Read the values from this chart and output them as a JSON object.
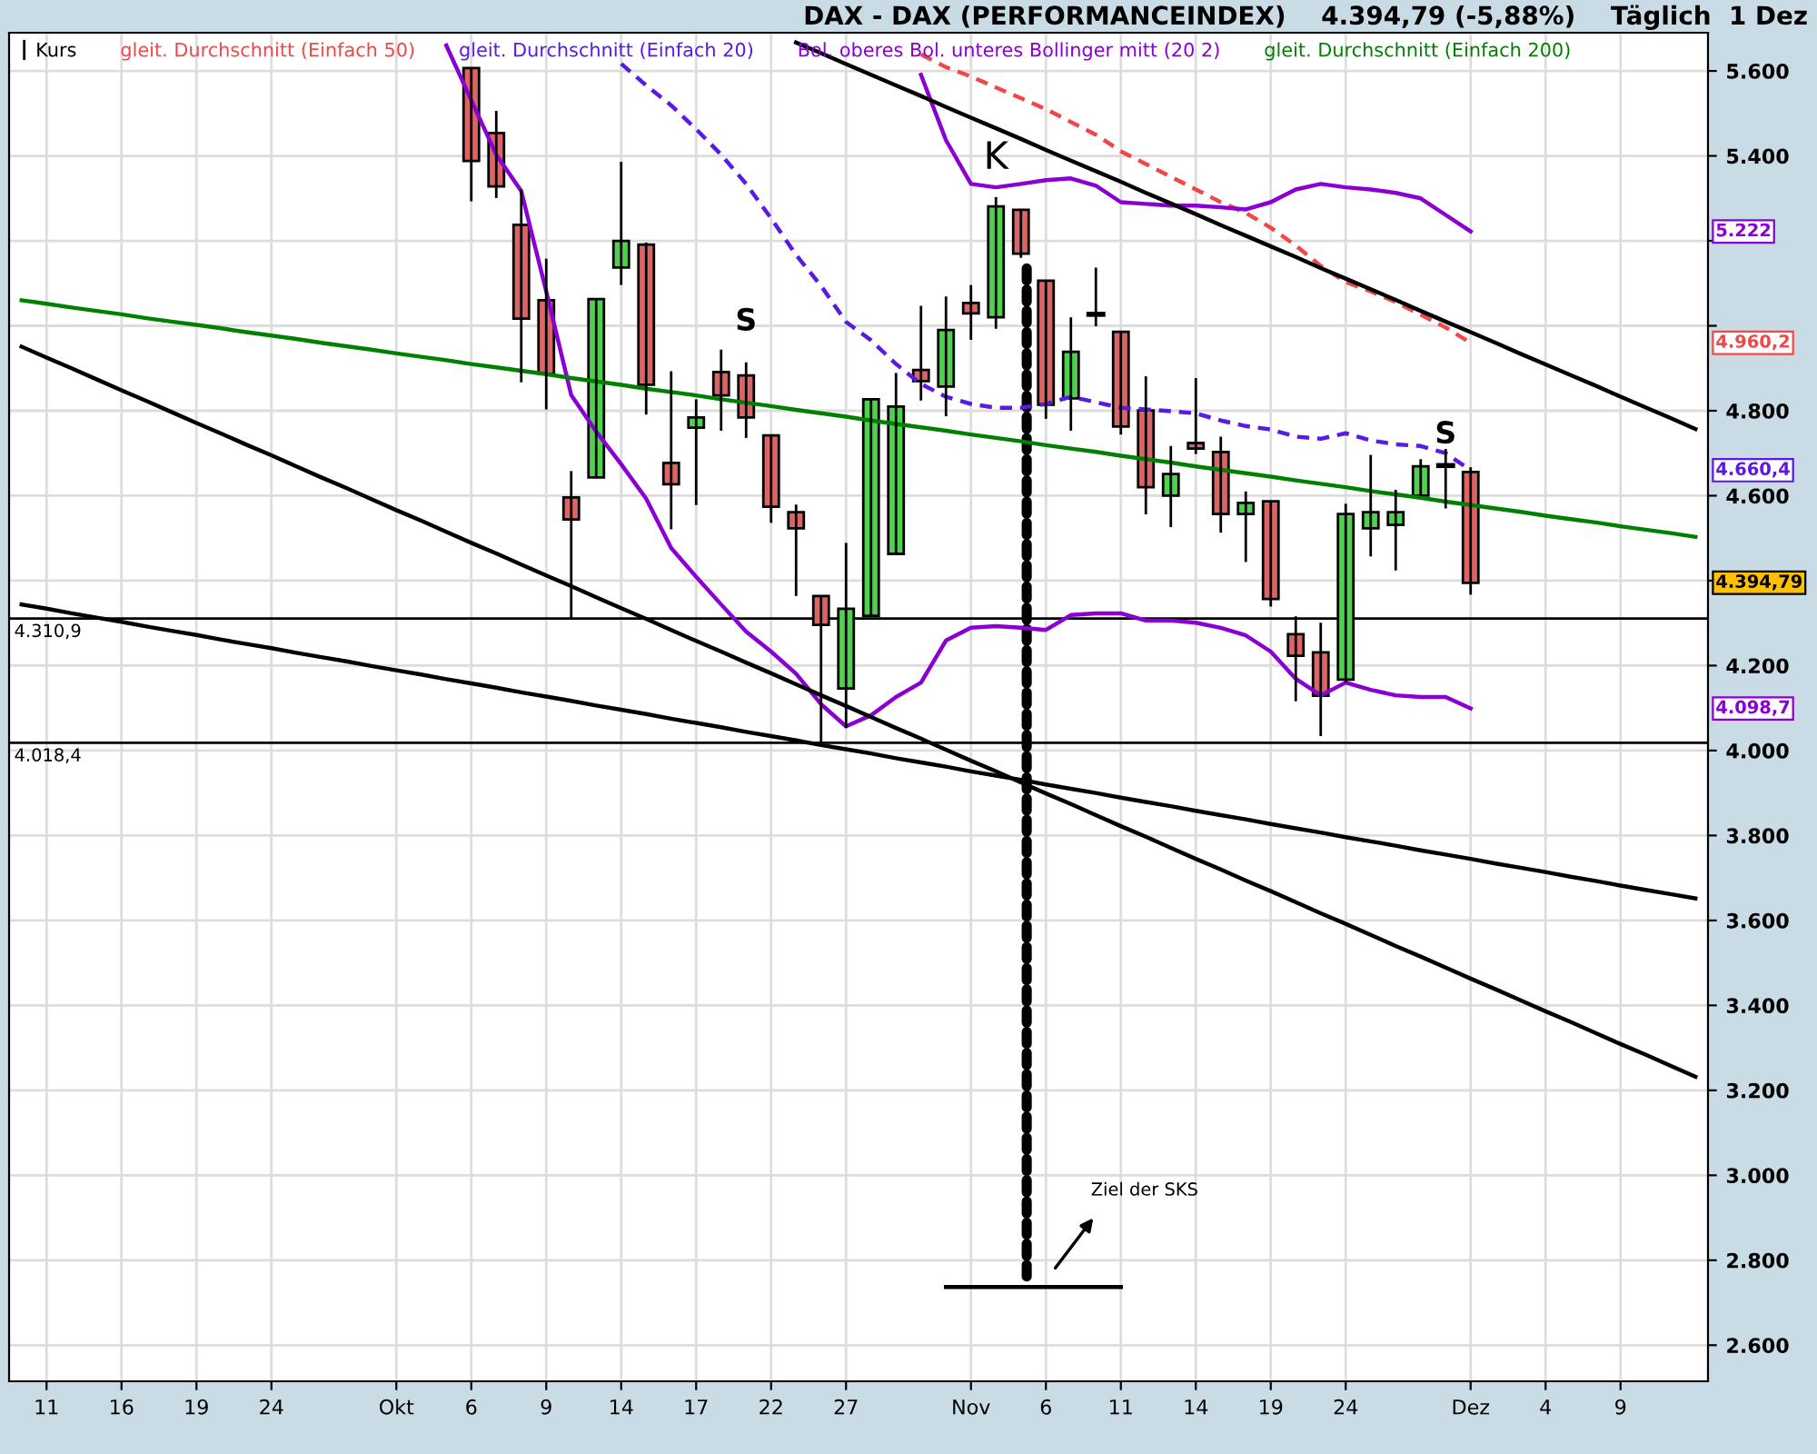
{
  "chart_data": {
    "type": "candlestick",
    "title": "DAX - DAX (PERFORMANCEINDEX)    4.394,79 (-5,88%)    Täglich  1 Dez",
    "categories": [
      null,
      "11",
      null,
      null,
      "16",
      null,
      null,
      "19",
      null,
      null,
      "24",
      null,
      null,
      null,
      null,
      "Okt",
      null,
      null,
      "6",
      null,
      null,
      "9",
      null,
      null,
      "14",
      null,
      null,
      "17",
      null,
      null,
      "22",
      null,
      null,
      "27",
      null,
      null,
      null,
      null,
      "Nov",
      null,
      null,
      "6",
      null,
      null,
      "11",
      null,
      null,
      "14",
      null,
      null,
      "19",
      null,
      null,
      "24",
      null,
      null,
      null,
      null,
      "Dez",
      null,
      null,
      "4",
      null,
      null,
      "9",
      null,
      null,
      null
    ],
    "series": [
      {
        "name": "Kurs",
        "color": "#000000",
        "ohlc": [
          null,
          null,
          null,
          null,
          null,
          null,
          null,
          null,
          null,
          null,
          null,
          null,
          null,
          null,
          null,
          null,
          null,
          null,
          [
            5607,
            5607,
            5293,
            5388
          ],
          [
            5454,
            5506,
            5301,
            5328
          ],
          [
            5238,
            5321,
            4867,
            5017
          ],
          [
            5060,
            5158,
            4803,
            4887
          ],
          [
            4596,
            4658,
            4311,
            4544
          ],
          [
            4643,
            5063,
            4643,
            5063
          ],
          [
            5137,
            5386,
            5096,
            5200
          ],
          [
            5191,
            5196,
            4791,
            4861
          ],
          [
            4677,
            4893,
            4521,
            4627
          ],
          [
            4760,
            4827,
            4578,
            4784
          ],
          [
            4891,
            4944,
            4753,
            4836
          ],
          [
            4883,
            4914,
            4736,
            4784
          ],
          [
            4742,
            4742,
            4536,
            4574
          ],
          [
            4561,
            4579,
            4364,
            4523
          ],
          [
            4364,
            4364,
            4018,
            4296
          ],
          [
            4146,
            4489,
            4053,
            4334
          ],
          [
            4317,
            4827,
            4317,
            4827
          ],
          [
            4463,
            4889,
            4463,
            4810
          ],
          [
            4896,
            5047,
            4824,
            4870
          ],
          [
            4857,
            5069,
            4787,
            4990
          ],
          [
            5054,
            5096,
            4967,
            5029
          ],
          [
            5020,
            5303,
            4993,
            5281
          ],
          [
            5273,
            5273,
            5160,
            5170
          ],
          [
            5106,
            5106,
            4781,
            4814
          ],
          [
            4829,
            5020,
            4753,
            4939
          ],
          [
            5027,
            5137,
            4999,
            5027
          ],
          [
            4986,
            4986,
            4744,
            4763
          ],
          [
            4801,
            4881,
            4556,
            4620
          ],
          [
            4600,
            4717,
            4526,
            4651
          ],
          [
            4724,
            4877,
            4698,
            4711
          ],
          [
            4703,
            4739,
            4513,
            4557
          ],
          [
            4557,
            4610,
            4444,
            4583
          ],
          [
            4587,
            4587,
            4339,
            4357
          ],
          [
            4274,
            4316,
            4116,
            4223
          ],
          [
            4231,
            4301,
            4034,
            4129
          ],
          [
            4167,
            4581,
            4160,
            4557
          ],
          [
            4523,
            4696,
            4457,
            4561
          ],
          [
            4531,
            4614,
            4424,
            4561
          ],
          [
            4600,
            4686,
            4600,
            4669
          ],
          [
            4671,
            4710,
            4570,
            4671
          ],
          [
            4656,
            4667,
            4367,
            4395
          ],
          null,
          null,
          null,
          null,
          null,
          null,
          null,
          null,
          null
        ],
        "colors": [
          null,
          null,
          null,
          null,
          null,
          null,
          null,
          null,
          null,
          null,
          null,
          null,
          null,
          null,
          null,
          null,
          null,
          null,
          "#db6464",
          "#db6464",
          "#db6464",
          "#db6464",
          "#db6464",
          "#4fd14f",
          "#4fd14f",
          "#db6464",
          "#db6464",
          "#4fd14f",
          "#db6464",
          "#db6464",
          "#db6464",
          "#db6464",
          "#db6464",
          "#4fd14f",
          "#4fd14f",
          "#4fd14f",
          "#db6464",
          "#4fd14f",
          "#db6464",
          "#4fd14f",
          "#db6464",
          "#db6464",
          "#4fd14f",
          "#000000",
          "#db6464",
          "#db6464",
          "#4fd14f",
          "#db6464",
          "#db6464",
          "#4fd14f",
          "#db6464",
          "#db6464",
          "#db6464",
          "#4fd14f",
          "#4fd14f",
          "#4fd14f",
          "#4fd14f",
          "#000000",
          "#db6464",
          null,
          null,
          null,
          null,
          null,
          null,
          null,
          null,
          null
        ]
      },
      {
        "type": "line",
        "name": "gleit. Durchschnitt (Einfach 50)",
        "color": "#f04848",
        "line_style": "dashed",
        "values": [
          null,
          null,
          null,
          null,
          null,
          null,
          null,
          null,
          null,
          null,
          null,
          null,
          null,
          null,
          null,
          null,
          null,
          null,
          null,
          null,
          null,
          null,
          null,
          null,
          null,
          null,
          null,
          null,
          null,
          null,
          null,
          null,
          null,
          null,
          null,
          null,
          5639,
          5609,
          5587,
          5561,
          5536,
          5510,
          5480,
          5450,
          5411,
          5381,
          5351,
          5321,
          5291,
          5266,
          5231,
          5189,
          5141,
          5103,
          5081,
          5056,
          5026,
          4996,
          4960,
          null,
          null,
          null,
          null,
          null,
          null,
          null,
          null,
          null
        ]
      },
      {
        "type": "line",
        "name": "gleit. Durchschnitt (Einfach 20)",
        "color": "#5a1ae6",
        "line_style": "dashed",
        "values": [
          null,
          null,
          null,
          null,
          null,
          null,
          null,
          null,
          null,
          null,
          null,
          null,
          null,
          null,
          null,
          null,
          null,
          null,
          null,
          null,
          null,
          null,
          null,
          null,
          5617,
          5566,
          5519,
          5463,
          5403,
          5334,
          5253,
          5167,
          5094,
          5009,
          4966,
          4910,
          4863,
          4833,
          4816,
          4807,
          4807,
          4816,
          4833,
          4820,
          4807,
          4803,
          4799,
          4794,
          4777,
          4764,
          4756,
          4739,
          4734,
          4747,
          4730,
          4721,
          4717,
          4700,
          4660,
          null,
          null,
          null,
          null,
          null,
          null,
          null,
          null,
          null
        ]
      },
      {
        "type": "line",
        "name": "Bol. oberes Bol. unteres Bollinger mitt (20 2)",
        "color": "#8a00d4",
        "line_style": "solid",
        "values": [
          null,
          null,
          null,
          null,
          null,
          null,
          null,
          null,
          null,
          null,
          null,
          null,
          null,
          null,
          null,
          null,
          null,
          null,
          null,
          null,
          null,
          null,
          null,
          null,
          null,
          null,
          null,
          null,
          null,
          null,
          null,
          null,
          null,
          null,
          null,
          null,
          5591,
          5437,
          5334,
          5326,
          5334,
          5343,
          5347,
          5330,
          5291,
          5287,
          5283,
          5283,
          5279,
          5274,
          5291,
          5321,
          5334,
          5326,
          5321,
          5313,
          5300,
          5261,
          5222,
          null,
          null,
          null,
          null,
          null,
          null,
          null,
          null,
          null
        ]
      },
      {
        "type": "line",
        "color": "#8a00d4",
        "line_style": "solid",
        "values": [
          null,
          null,
          null,
          null,
          null,
          null,
          null,
          null,
          null,
          null,
          null,
          null,
          null,
          null,
          null,
          null,
          null,
          5660,
          5531,
          5403,
          5317,
          5081,
          4837,
          4751,
          4674,
          4593,
          4477,
          4409,
          4344,
          4280,
          4233,
          4181,
          4109,
          4057,
          4083,
          4126,
          4160,
          4259,
          4289,
          4293,
          4289,
          4284,
          4319,
          4323,
          4323,
          4306,
          4306,
          4301,
          4289,
          4271,
          4233,
          4169,
          4130,
          4160,
          4143,
          4130,
          4126,
          4126,
          4099,
          null,
          null,
          null,
          null,
          null,
          null,
          null,
          null,
          null
        ]
      },
      {
        "type": "line",
        "name": "gleit. Durchschnitt (Einfach 200)",
        "color": "#008000",
        "line_style": "solid",
        "values": [
          5060,
          5052,
          5043,
          5035,
          5027,
          5018,
          5010,
          5002,
          4994,
          4985,
          4977,
          4969,
          4960,
          4952,
          4944,
          4935,
          4927,
          4919,
          4910,
          4902,
          4894,
          4886,
          4877,
          4869,
          4861,
          4852,
          4844,
          4836,
          4827,
          4819,
          4811,
          4802,
          4794,
          4786,
          4777,
          4769,
          4761,
          4753,
          4744,
          4736,
          4728,
          4719,
          4711,
          4703,
          4694,
          4686,
          4678,
          4669,
          4661,
          4653,
          4645,
          4636,
          4628,
          4620,
          4611,
          4603,
          4595,
          4586,
          4578,
          4570,
          4562,
          4553,
          4545,
          4537,
          4528,
          4520,
          4512,
          4503
        ]
      },
      {
        "type": "line",
        "color": "#000000",
        "line_style": "solid",
        "values": [
          null,
          null,
          null,
          null,
          null,
          null,
          null,
          null,
          null,
          null,
          null,
          null,
          null,
          null,
          null,
          null,
          null,
          null,
          null,
          null,
          null,
          null,
          null,
          null,
          null,
          null,
          null,
          null,
          null,
          null,
          null,
          5667,
          5642,
          5616,
          5591,
          5566,
          5541,
          5515,
          5490,
          5465,
          5440,
          5414,
          5389,
          5364,
          5339,
          5313,
          5288,
          5263,
          5237,
          5212,
          5187,
          5162,
          5136,
          5111,
          5086,
          5061,
          5035,
          5010,
          4985,
          4960,
          4934,
          4909,
          4884,
          4859,
          4833,
          4808,
          4783,
          4757
        ]
      },
      {
        "type": "line",
        "color": "#000000",
        "line_style": "solid",
        "values": [
          4951,
          4925,
          4900,
          4874,
          4848,
          4823,
          4797,
          4771,
          4746,
          4720,
          4695,
          4669,
          4643,
          4618,
          4592,
          4566,
          4541,
          4515,
          4489,
          4464,
          4438,
          4412,
          4387,
          4361,
          4335,
          4310,
          4284,
          4258,
          4233,
          4207,
          4182,
          4156,
          4130,
          4105,
          4079,
          4053,
          4028,
          4002,
          3976,
          3951,
          3925,
          3899,
          3874,
          3848,
          3822,
          3797,
          3771,
          3745,
          3720,
          3694,
          3669,
          3643,
          3617,
          3592,
          3566,
          3540,
          3515,
          3489,
          3463,
          3438,
          3412,
          3386,
          3361,
          3335,
          3309,
          3284,
          3258,
          3232
        ]
      },
      {
        "type": "line",
        "color": "#000000",
        "line_style": "solid",
        "values": [
          4344,
          4334,
          4323,
          4313,
          4303,
          4292,
          4282,
          4272,
          4261,
          4251,
          4241,
          4230,
          4220,
          4210,
          4199,
          4189,
          4179,
          4168,
          4158,
          4148,
          4137,
          4127,
          4117,
          4106,
          4096,
          4086,
          4075,
          4065,
          4055,
          4044,
          4034,
          4024,
          4013,
          4003,
          3993,
          3982,
          3972,
          3962,
          3951,
          3941,
          3931,
          3920,
          3910,
          3900,
          3889,
          3879,
          3869,
          3858,
          3848,
          3838,
          3827,
          3817,
          3807,
          3796,
          3786,
          3776,
          3765,
          3755,
          3745,
          3734,
          3724,
          3714,
          3703,
          3693,
          3682,
          3672,
          3662,
          3652
        ]
      },
      {
        "type": "line",
        "color": "#000000",
        "line_style": "solid",
        "values": [
          null,
          null,
          null,
          null,
          null,
          null,
          null,
          null,
          null,
          null,
          null,
          null,
          null,
          null,
          null,
          null,
          null,
          null,
          null,
          null,
          null,
          null,
          null,
          null,
          null,
          null,
          null,
          null,
          null,
          null,
          null,
          null,
          null,
          null,
          null,
          null,
          null,
          2737,
          2737,
          2737,
          2737,
          2737,
          2737,
          2737,
          2737,
          null,
          null,
          null,
          null,
          null,
          null,
          null,
          null,
          null,
          null,
          null,
          null,
          null,
          null,
          null,
          null,
          null,
          null,
          null,
          null,
          null,
          null,
          null
        ]
      }
    ],
    "ylim": [
      2515,
      5690
    ],
    "yticks": [
      {
        "value": 2600,
        "label": "2.600"
      },
      {
        "value": 2800,
        "label": "2.800"
      },
      {
        "value": 3000,
        "label": "3.000"
      },
      {
        "value": 3200,
        "label": "3.200"
      },
      {
        "value": 3400,
        "label": "3.400"
      },
      {
        "value": 3600,
        "label": "3.600"
      },
      {
        "value": 3800,
        "label": "3.800"
      },
      {
        "value": 4000,
        "label": "4.000"
      },
      {
        "value": 4200,
        "label": "4.200"
      },
      {
        "value": 4400,
        "label": null
      },
      {
        "value": 4600,
        "label": "4.600"
      },
      {
        "value": 4800,
        "label": "4.800"
      },
      {
        "value": 5000,
        "label": null
      },
      {
        "value": 5200,
        "label": null
      },
      {
        "value": 5400,
        "label": "5.400"
      },
      {
        "value": 5600,
        "label": "5.600"
      }
    ],
    "ref_lines": [
      {
        "axis": "y",
        "value": 4310.9,
        "label": "4.310,9",
        "color": "#000000"
      },
      {
        "axis": "y",
        "value": 4018.4,
        "label": "4.018,4",
        "color": "#000000"
      }
    ],
    "annotations": [
      "K",
      "S",
      "S",
      "Ziel der SKS",
      "5.222",
      "4.960,2",
      "4.660,4",
      "4.394,79",
      "4.098,7"
    ],
    "grid": true,
    "legend": "top left"
  }
}
